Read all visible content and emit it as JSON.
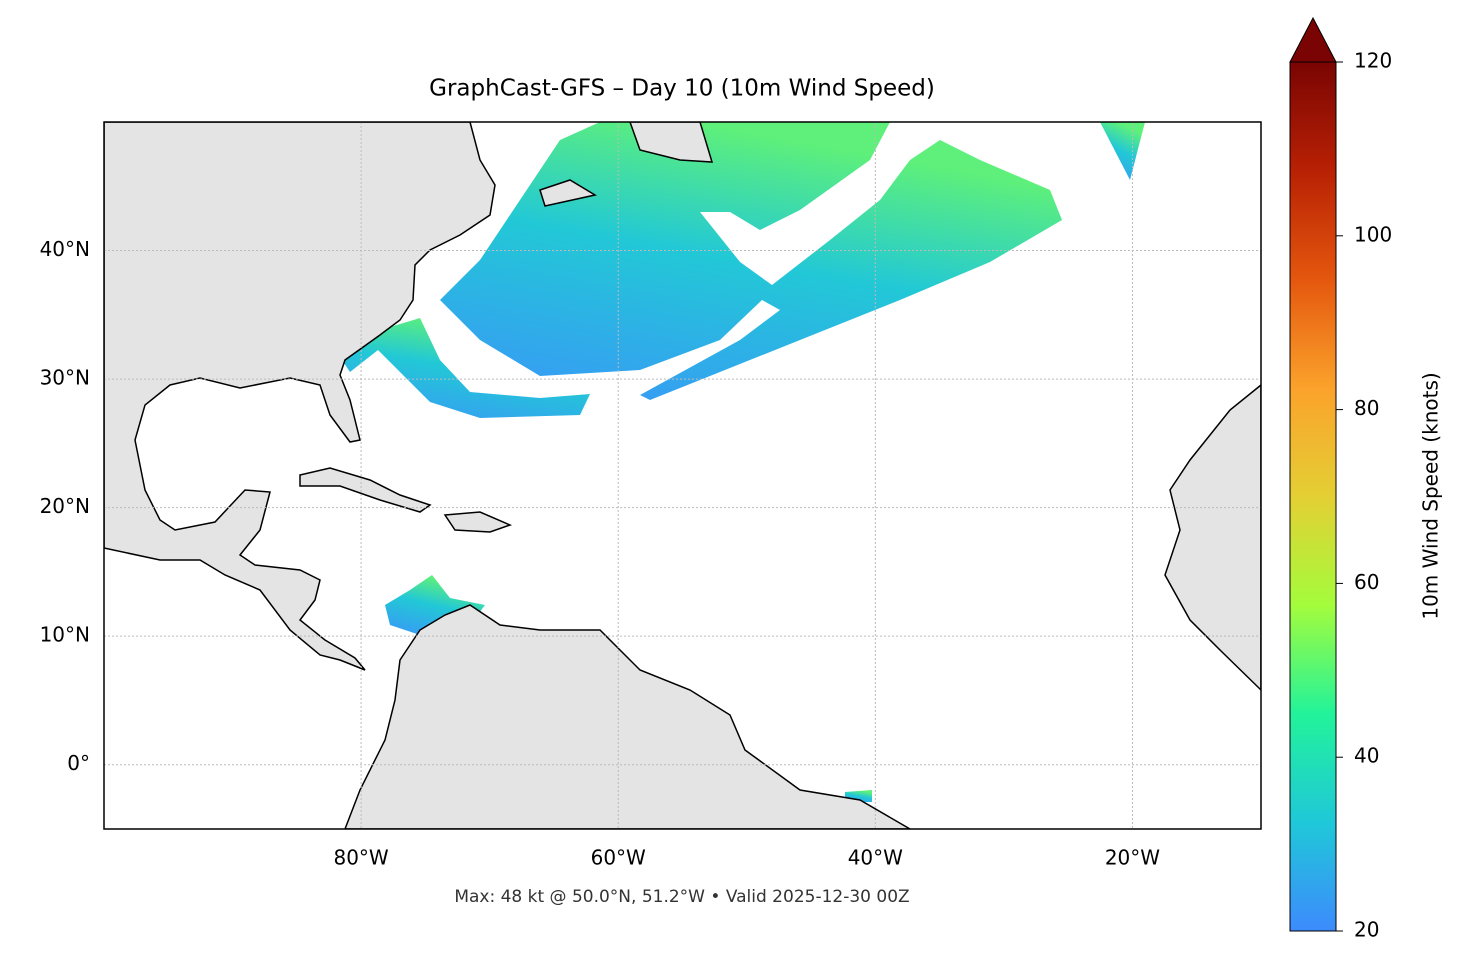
{
  "chart_data": {
    "type": "map",
    "title": "GraphCast-GFS – Day 10 (10m Wind Speed)",
    "footnote": "Max: 48 kt @ 50.0°N, 51.2°W • Valid 2025-12-30 00Z",
    "xlim": [
      -100,
      -10
    ],
    "ylim": [
      -5,
      50
    ],
    "xticks": [
      {
        "value": -80,
        "label": "80°W"
      },
      {
        "value": -60,
        "label": "60°W"
      },
      {
        "value": -40,
        "label": "40°W"
      },
      {
        "value": -20,
        "label": "20°W"
      }
    ],
    "yticks": [
      {
        "value": 0,
        "label": "0°"
      },
      {
        "value": 10,
        "label": "10°N"
      },
      {
        "value": 20,
        "label": "20°N"
      },
      {
        "value": 30,
        "label": "30°N"
      },
      {
        "value": 40,
        "label": "40°N"
      }
    ],
    "grid": true,
    "colorbar": {
      "label": "10m Wind Speed (knots)",
      "lim": [
        20,
        120
      ],
      "ticks": [
        20,
        40,
        60,
        80,
        100,
        120
      ],
      "colors": [
        "#3d8bfd",
        "#1fc8d8",
        "#22f39a",
        "#a4fc3c",
        "#e4cf34",
        "#fba22b",
        "#e4570e",
        "#b82104",
        "#7a0403"
      ],
      "extend": "max"
    }
  }
}
